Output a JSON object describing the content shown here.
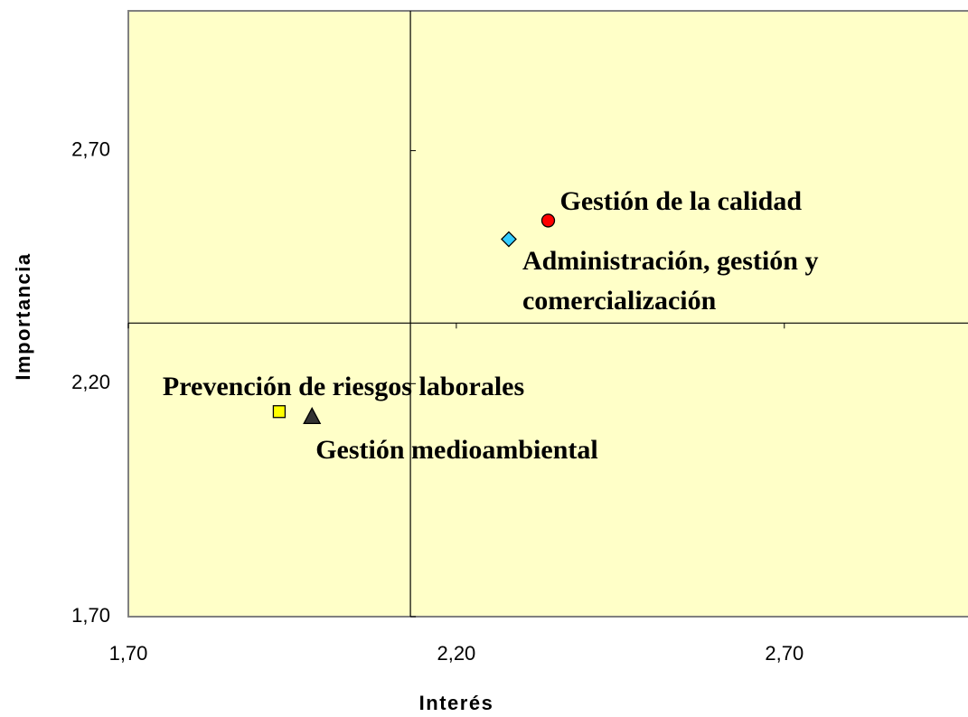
{
  "chart_data": {
    "type": "scatter",
    "x_label": "Interés",
    "y_label": "Importancia",
    "xlim": [
      1.7,
      2.98
    ],
    "ylim": [
      1.7,
      3.0
    ],
    "xticks": [
      {
        "value": 1.7,
        "label": "1,70"
      },
      {
        "value": 2.2,
        "label": "2,20"
      },
      {
        "value": 2.7,
        "label": "2,70"
      }
    ],
    "yticks": [
      {
        "value": 1.7,
        "label": "1,70"
      },
      {
        "value": 2.2,
        "label": "2,20"
      },
      {
        "value": 2.7,
        "label": "2,70"
      }
    ],
    "crosshair": {
      "x": 2.13,
      "y": 2.33
    },
    "background": "#ffffc8",
    "series": [
      {
        "name": "Gestión de la calidad",
        "color": "#ff0000",
        "marker": "circle",
        "x": [
          2.34
        ],
        "values": [
          2.55
        ]
      },
      {
        "name": "Administración, gestión y comercialización",
        "color": "#33ccff",
        "marker": "diamond",
        "x": [
          2.28
        ],
        "values": [
          2.51
        ]
      },
      {
        "name": "Prevención de riesgos laborales",
        "color": "#ffff00",
        "marker": "square",
        "x": [
          1.93
        ],
        "values": [
          2.14
        ]
      },
      {
        "name": "Gestión medioambiental",
        "color": "#333333",
        "marker": "triangle",
        "x": [
          1.98
        ],
        "values": [
          2.13
        ]
      }
    ]
  }
}
